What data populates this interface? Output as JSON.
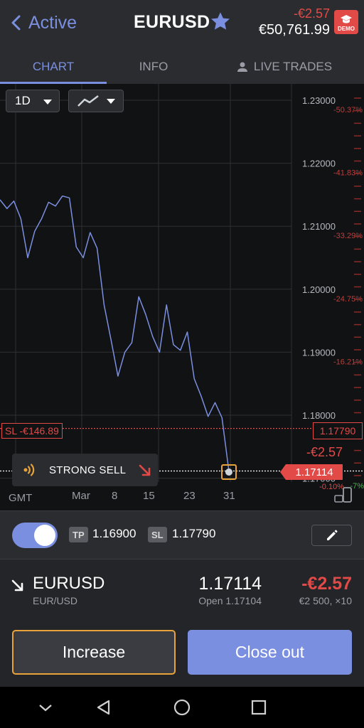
{
  "header": {
    "back_label": "Active",
    "title": "EURUSD",
    "pl": "-€2.57",
    "balance": "€50,761.99",
    "demo_label": "DEMO"
  },
  "tabs": [
    {
      "label": "CHART",
      "active": true
    },
    {
      "label": "INFO",
      "active": false
    },
    {
      "label": "LIVE TRADES",
      "active": false
    }
  ],
  "chart": {
    "timeframe": "1D",
    "stop_loss_label": "SL -€146.89",
    "stop_loss_price": "1.17790",
    "current_pl": "-€2.57",
    "current_price": "1.17114",
    "signal_label": "STRONG SELL",
    "gmt_label": "GMT",
    "price_labels": [
      "1.23000",
      "1.22000",
      "1.21000",
      "1.20000",
      "1.19000",
      "1.18000",
      "1.17000"
    ],
    "pct_labels": [
      "-50.37%",
      "-41.83%",
      "-33.29%",
      "-24.75%",
      "-16.21%"
    ],
    "pct_low": "-0.10%",
    "pct_green": "-7%",
    "x_labels": [
      "Mar",
      "8",
      "15",
      "23",
      "31"
    ],
    "accent": "#7b8fe0",
    "negative": "#e24a47"
  },
  "chart_data": {
    "type": "line",
    "title": "",
    "series": [
      {
        "values": [
          1.2142,
          1.2128,
          1.214,
          1.2112,
          1.205,
          1.2092,
          1.2112,
          1.2138,
          1.2132,
          1.2148,
          1.2145,
          1.2067,
          1.205,
          1.209,
          1.2065,
          1.1975,
          1.192,
          1.1862,
          1.19,
          1.1915,
          1.1988,
          1.196,
          1.1925,
          1.19,
          1.1975,
          1.1912,
          1.1903,
          1.1932,
          1.1858,
          1.183,
          1.1798,
          1.182,
          1.1796,
          1.1711
        ]
      }
    ],
    "x_tick_labels": [
      "Mar",
      "8",
      "15",
      "23",
      "31"
    ],
    "ylim": [
      1.1695,
      1.232
    ],
    "y_ticks": [
      1.23,
      1.22,
      1.21,
      1.2,
      1.19,
      1.18,
      1.17
    ],
    "stop_loss": 1.1779,
    "current": 1.17114,
    "grid": true
  },
  "protection": {
    "enabled": true,
    "tp_label": "TP",
    "tp_value": "1.16900",
    "sl_label": "SL",
    "sl_value": "1.17790"
  },
  "position": {
    "symbol": "EURUSD",
    "pair": "EUR/USD",
    "price": "1.17114",
    "open": "Open 1.17104",
    "pl": "-€2.57",
    "size": "€2 500, ×10"
  },
  "actions": {
    "increase_label": "Increase",
    "close_label": "Close out"
  }
}
